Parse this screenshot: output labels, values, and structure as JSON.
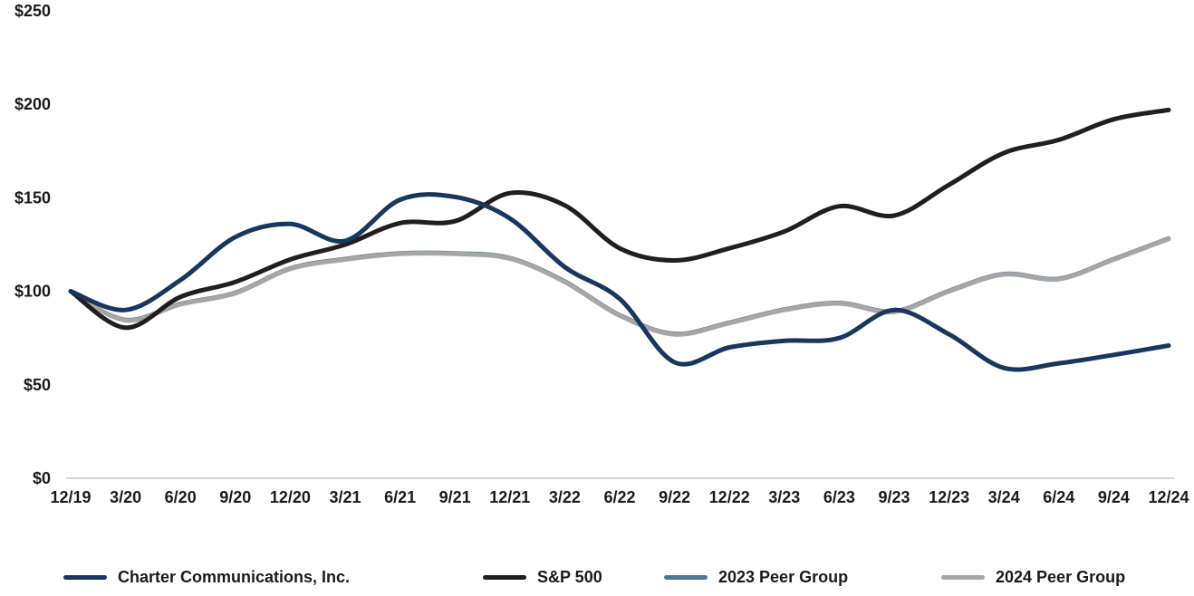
{
  "chart_data": {
    "type": "line",
    "title": "",
    "xlabel": "",
    "ylabel": "",
    "ylim": [
      0,
      250
    ],
    "grid": false,
    "legend_position": "bottom",
    "y_ticks": [
      0,
      50,
      100,
      150,
      200,
      250
    ],
    "y_tick_labels": [
      "$0",
      "$50",
      "$100",
      "$150",
      "$200",
      "$250"
    ],
    "x_tick_labels": [
      "12/19",
      "3/20",
      "6/20",
      "9/20",
      "12/20",
      "3/21",
      "6/21",
      "9/21",
      "12/21",
      "3/22",
      "6/22",
      "9/22",
      "12/22",
      "3/23",
      "6/23",
      "9/23",
      "12/23",
      "3/24",
      "6/24",
      "9/24",
      "12/24"
    ],
    "axis_color": "#bfbfbf",
    "label_color": "#1a1a1a",
    "series": [
      {
        "name": "Charter Communications, Inc.",
        "color": "#17375e",
        "values": [
          100,
          90,
          106,
          129,
          136,
          127,
          149,
          150.5,
          139,
          113,
          96,
          62,
          70,
          73.5,
          75,
          90,
          77,
          59,
          61.5,
          66,
          71
        ]
      },
      {
        "name": "S&P 500",
        "color": "#221e1f",
        "values": [
          100,
          80.5,
          97,
          105,
          117,
          125,
          136.5,
          137.5,
          152.5,
          146,
          123,
          116.5,
          123,
          132,
          145.5,
          140.5,
          157,
          174,
          181,
          192,
          197
        ]
      },
      {
        "name": "2023 Peer Group",
        "color": "#4d7796",
        "values": [
          100,
          85,
          93.5,
          99.5,
          112.5,
          117.5,
          120.5,
          120.5,
          118,
          105.5,
          87.5,
          77.5,
          83.5,
          90.5,
          94,
          89.5,
          100.5,
          109.5,
          107,
          117.5,
          128.5
        ]
      },
      {
        "name": "2024 Peer Group",
        "color": "#a6a6a6",
        "values": [
          100,
          84.5,
          93,
          99,
          112,
          117,
          120,
          120,
          117.5,
          105,
          87,
          77,
          83,
          90,
          93.5,
          89,
          100,
          109,
          106.5,
          117,
          128
        ]
      }
    ]
  }
}
